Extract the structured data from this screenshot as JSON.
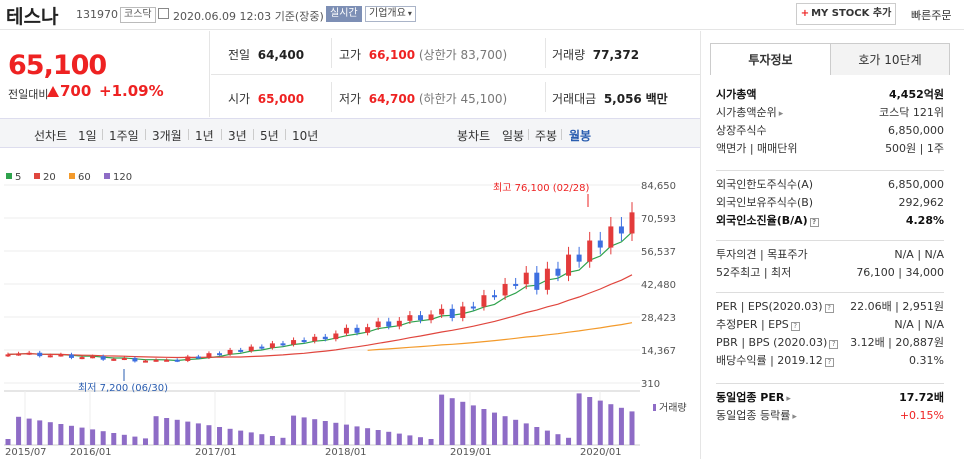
{
  "header": {
    "name": "테스나",
    "code": "131970",
    "market": "코스닥",
    "timestamp": "2020.06.09 12:03",
    "basis": "기준(장중)",
    "realtime": "실시간",
    "company_info": "기업개요",
    "mystock_label": "MY STOCK 추가",
    "quick_order": "빠른주문"
  },
  "price": {
    "current": "65,100",
    "change_label": "전일대비",
    "change_value": "700",
    "change_pct": "+1.09%"
  },
  "stats": {
    "prev_label": "전일",
    "prev": "64,400",
    "high_label": "고가",
    "high": "66,100",
    "upper_limit": "(상한가 83,700)",
    "volume_label": "거래량",
    "volume": "77,372",
    "open_label": "시가",
    "open": "65,000",
    "low_label": "저가",
    "low": "64,700",
    "lower_limit": "(하한가 45,100)",
    "amount_label": "거래대금",
    "amount": "5,056",
    "amount_unit": "백만"
  },
  "toolbar": {
    "line_chart": "선차트",
    "line_periods": [
      "1일",
      "1주일",
      "3개월",
      "1년",
      "3년",
      "5년",
      "10년"
    ],
    "candle_chart": "봉차트",
    "candle_periods": [
      "일봉",
      "주봉",
      "월봉"
    ],
    "selected": "월봉"
  },
  "chart": {
    "legend": [
      "5",
      "20",
      "60",
      "120"
    ],
    "colors": {
      "ma5": "#2fa34d",
      "ma20": "#e0463e",
      "ma60": "#f39a2b",
      "ma120": "#8e6cc6",
      "up": "#e33b3b",
      "down": "#3d6fe0"
    },
    "yticks": [
      "84,650",
      "70,593",
      "56,537",
      "42,480",
      "28,423",
      "14,367",
      "310"
    ],
    "xticks": [
      "2015/07",
      "2016/01",
      "2017/01",
      "2018/01",
      "2019/01",
      "2020/01"
    ],
    "high_note": "최고 76,100 (02/28)",
    "low_note": "최저 7,200 (06/30)",
    "volume_label": "거래량"
  },
  "panel": {
    "tab_info": "투자정보",
    "tab_quote": "호가 10단계",
    "rows1": [
      {
        "l": "시가총액",
        "r": "4,452억원",
        "bold": true
      },
      {
        "l": "시가총액순위",
        "r": "코스닥 121위",
        "arrow": true
      },
      {
        "l": "상장주식수",
        "r": "6,850,000"
      },
      {
        "l": "액면가 | 매매단위",
        "r": "500원 | 1주"
      }
    ],
    "rows2": [
      {
        "l": "외국인한도주식수(A)",
        "r": "6,850,000"
      },
      {
        "l": "외국인보유주식수(B)",
        "r": "292,962"
      },
      {
        "l": "외국인소진율(B/A)",
        "r": "4.28%",
        "bold": true,
        "q": true
      }
    ],
    "rows3": [
      {
        "l": "투자의견 | 목표주가",
        "r": "N/A | N/A"
      },
      {
        "l": "52주최고 | 최저",
        "r": "76,100 | 34,000"
      }
    ],
    "rows4": [
      {
        "l": "PER | EPS(2020.03)",
        "r": "22.06배 | 2,951원",
        "q": true
      },
      {
        "l": "추정PER | EPS",
        "r": "N/A | N/A",
        "q": true
      },
      {
        "l": "PBR | BPS (2020.03)",
        "r": "3.12배 | 20,887원",
        "q": true
      },
      {
        "l": "배당수익률 | 2019.12",
        "r": "0.31%",
        "q": true
      }
    ],
    "rows5": [
      {
        "l": "동일업종 PER",
        "r": "17.72배",
        "bold": true,
        "arrow": true
      },
      {
        "l": "동일업종 등락률",
        "r": "+0.15%",
        "arrow": true,
        "red": true
      }
    ]
  }
}
